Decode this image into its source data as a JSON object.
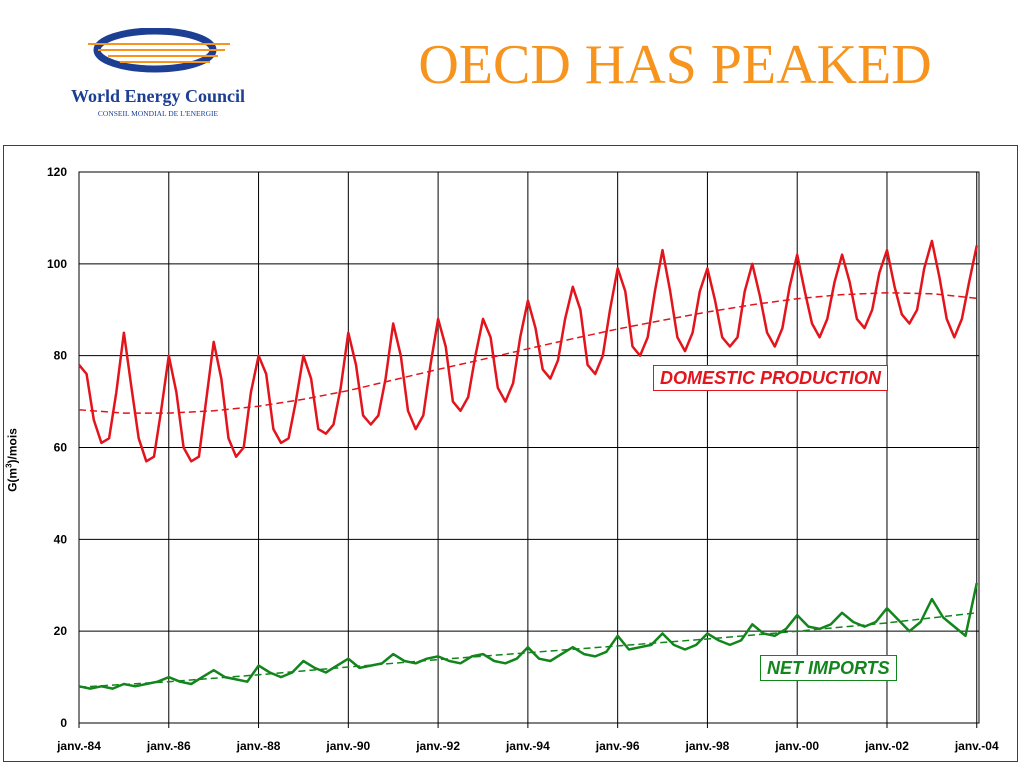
{
  "header": {
    "title": "OECD HAS PEAKED",
    "title_color": "#f7941d",
    "logo": {
      "name": "World Energy Council",
      "subtitle": "CONSEIL MONDIAL DE L'ENERGIE",
      "icon": "globe-ellipse-logo",
      "colors": {
        "blue": "#1c3f94",
        "orange": "#f7941d"
      }
    }
  },
  "chart_data": {
    "type": "line",
    "xlabel": "",
    "ylabel": "G(m3)/mois",
    "ylabel_parts": {
      "prefix": "G(m",
      "superscript": "3",
      "suffix": ")/mois"
    },
    "ylim": [
      0,
      120
    ],
    "yticks": [
      0,
      20,
      40,
      60,
      80,
      100,
      120
    ],
    "xlim": [
      1984.0,
      2004.05
    ],
    "xticks": [
      {
        "x": 1984,
        "label": "janv.-84"
      },
      {
        "x": 1986,
        "label": "janv.-86"
      },
      {
        "x": 1988,
        "label": "janv.-88"
      },
      {
        "x": 1990,
        "label": "janv.-90"
      },
      {
        "x": 1992,
        "label": "janv.-92"
      },
      {
        "x": 1994,
        "label": "janv.-94"
      },
      {
        "x": 1996,
        "label": "janv.-96"
      },
      {
        "x": 1998,
        "label": "janv.-98"
      },
      {
        "x": 2000,
        "label": "janv.-00"
      },
      {
        "x": 2002,
        "label": "janv.-02"
      },
      {
        "x": 2004,
        "label": "janv.-04"
      }
    ],
    "grid": true,
    "legend": "none",
    "series": [
      {
        "name": "DOMESTIC PRODUCTION",
        "color": "#e3141c",
        "style": "solid",
        "x": [
          1984.0,
          1984.17,
          1984.33,
          1984.5,
          1984.67,
          1984.83,
          1985.0,
          1985.17,
          1985.33,
          1985.5,
          1985.67,
          1985.83,
          1986.0,
          1986.17,
          1986.33,
          1986.5,
          1986.67,
          1986.83,
          1987.0,
          1987.17,
          1987.33,
          1987.5,
          1987.67,
          1987.83,
          1988.0,
          1988.17,
          1988.33,
          1988.5,
          1988.67,
          1988.83,
          1989.0,
          1989.17,
          1989.33,
          1989.5,
          1989.67,
          1989.83,
          1990.0,
          1990.17,
          1990.33,
          1990.5,
          1990.67,
          1990.83,
          1991.0,
          1991.17,
          1991.33,
          1991.5,
          1991.67,
          1991.83,
          1992.0,
          1992.17,
          1992.33,
          1992.5,
          1992.67,
          1992.83,
          1993.0,
          1993.17,
          1993.33,
          1993.5,
          1993.67,
          1993.83,
          1994.0,
          1994.17,
          1994.33,
          1994.5,
          1994.67,
          1994.83,
          1995.0,
          1995.17,
          1995.33,
          1995.5,
          1995.67,
          1995.83,
          1996.0,
          1996.17,
          1996.33,
          1996.5,
          1996.67,
          1996.83,
          1997.0,
          1997.17,
          1997.33,
          1997.5,
          1997.67,
          1997.83,
          1998.0,
          1998.17,
          1998.33,
          1998.5,
          1998.67,
          1998.83,
          1999.0,
          1999.17,
          1999.33,
          1999.5,
          1999.67,
          1999.83,
          2000.0,
          2000.17,
          2000.33,
          2000.5,
          2000.67,
          2000.83,
          2001.0,
          2001.17,
          2001.33,
          2001.5,
          2001.67,
          2001.83,
          2002.0,
          2002.17,
          2002.33,
          2002.5,
          2002.67,
          2002.83,
          2003.0,
          2003.17,
          2003.33,
          2003.5,
          2003.67,
          2003.83,
          2004.0
        ],
        "values": [
          78,
          76,
          66,
          61,
          62,
          72,
          85,
          73,
          62,
          57,
          58,
          68,
          80,
          72,
          60,
          57,
          58,
          70,
          83,
          75,
          62,
          58,
          60,
          72,
          80,
          76,
          64,
          61,
          62,
          70,
          80,
          75,
          64,
          63,
          65,
          73,
          85,
          78,
          67,
          65,
          67,
          75,
          87,
          80,
          68,
          64,
          67,
          78,
          88,
          82,
          70,
          68,
          71,
          80,
          88,
          84,
          73,
          70,
          74,
          84,
          92,
          86,
          77,
          75,
          79,
          88,
          95,
          90,
          78,
          76,
          80,
          90,
          99,
          94,
          82,
          80,
          84,
          94,
          103,
          94,
          84,
          81,
          85,
          94,
          99,
          92,
          84,
          82,
          84,
          94,
          100,
          93,
          85,
          82,
          86,
          95,
          102,
          94,
          87,
          84,
          88,
          96,
          102,
          96,
          88,
          86,
          90,
          98,
          103,
          95,
          89,
          87,
          90,
          99,
          105,
          97,
          88,
          84,
          88,
          96,
          104
        ]
      },
      {
        "name": "",
        "color": "#e3141c",
        "style": "dashed",
        "x": [
          1984,
          1985,
          1986,
          1987,
          1988,
          1989,
          1990,
          1991,
          1992,
          1993,
          1994,
          1995,
          1996,
          1997,
          1998,
          1999,
          2000,
          2001,
          2002,
          2003,
          2004
        ],
        "values": [
          68.2,
          67.5,
          67.5,
          68.0,
          69.0,
          70.5,
          72.4,
          74.7,
          77.0,
          79.2,
          81.5,
          83.7,
          85.8,
          87.7,
          89.5,
          91.1,
          92.4,
          93.3,
          93.7,
          93.5,
          92.5
        ]
      },
      {
        "name": "NET IMPORTS",
        "color": "#12851c",
        "style": "solid",
        "x": [
          1984.0,
          1984.25,
          1984.5,
          1984.75,
          1985.0,
          1985.25,
          1985.5,
          1985.75,
          1986.0,
          1986.25,
          1986.5,
          1986.75,
          1987.0,
          1987.25,
          1987.5,
          1987.75,
          1988.0,
          1988.25,
          1988.5,
          1988.75,
          1989.0,
          1989.25,
          1989.5,
          1989.75,
          1990.0,
          1990.25,
          1990.5,
          1990.75,
          1991.0,
          1991.25,
          1991.5,
          1991.75,
          1992.0,
          1992.25,
          1992.5,
          1992.75,
          1993.0,
          1993.25,
          1993.5,
          1993.75,
          1994.0,
          1994.25,
          1994.5,
          1994.75,
          1995.0,
          1995.25,
          1995.5,
          1995.75,
          1996.0,
          1996.25,
          1996.5,
          1996.75,
          1997.0,
          1997.25,
          1997.5,
          1997.75,
          1998.0,
          1998.25,
          1998.5,
          1998.75,
          1999.0,
          1999.25,
          1999.5,
          1999.75,
          2000.0,
          2000.25,
          2000.5,
          2000.75,
          2001.0,
          2001.25,
          2001.5,
          2001.75,
          2002.0,
          2002.25,
          2002.5,
          2002.75,
          2003.0,
          2003.25,
          2003.5,
          2003.75,
          2004.0
        ],
        "values": [
          8,
          7.5,
          8,
          7.5,
          8.5,
          8,
          8.5,
          9,
          10,
          9,
          8.5,
          10,
          11.5,
          10,
          9.5,
          9,
          12.5,
          11,
          10,
          11,
          13.5,
          12,
          11,
          12.5,
          14,
          12,
          12.5,
          13,
          15,
          13.5,
          13,
          14,
          14.5,
          13.5,
          13,
          14.5,
          15,
          13.5,
          13,
          14,
          16.5,
          14,
          13.5,
          15,
          16.5,
          15,
          14.5,
          15.5,
          19,
          16,
          16.5,
          17,
          19.5,
          17,
          16,
          17,
          19.5,
          18,
          17,
          18,
          21.5,
          19.5,
          19,
          20.5,
          23.5,
          21,
          20.5,
          21.5,
          24,
          22,
          21,
          22,
          25,
          22.5,
          20,
          22,
          27,
          23,
          21,
          19,
          30.5
        ]
      },
      {
        "name": "",
        "color": "#12851c",
        "style": "dashed",
        "x": [
          1984,
          1986,
          1988,
          1990,
          1992,
          1994,
          1996,
          1998,
          2000,
          2002,
          2004
        ],
        "values": [
          7.8,
          9.0,
          10.5,
          12.2,
          13.8,
          15.3,
          16.8,
          18.3,
          20.0,
          21.8,
          24.0
        ]
      }
    ],
    "annotations": [
      {
        "text": "DOMESTIC PRODUCTION",
        "color": "#e3141c"
      },
      {
        "text": "NET IMPORTS",
        "color": "#12851c"
      }
    ]
  }
}
